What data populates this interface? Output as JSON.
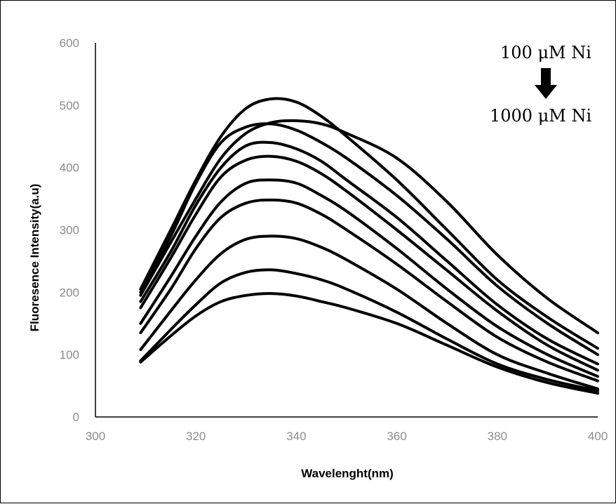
{
  "chart_data": {
    "type": "line",
    "xlabel": "Wavelenght(nm)",
    "ylabel": "Fluoresence Intensity(a.u)",
    "xlim": [
      300,
      400
    ],
    "ylim": [
      0,
      600
    ],
    "x_ticks": [
      "300",
      "320",
      "340",
      "360",
      "380",
      "400"
    ],
    "y_ticks": [
      "0",
      "100",
      "200",
      "300",
      "400",
      "500",
      "600"
    ],
    "grid": false,
    "legend": "none",
    "line_color": "#000000",
    "annotation": {
      "top_label": "100 μM Ni",
      "bottom_label": "1000 μM Ni",
      "arrow": "down"
    },
    "x": [
      309,
      315,
      320,
      325,
      330,
      335,
      340,
      345,
      350,
      360,
      370,
      380,
      390,
      400
    ],
    "series": [
      {
        "values": [
          205,
          300,
          380,
          450,
          495,
          510,
          505,
          482,
          450,
          380,
          300,
          220,
          160,
          110
        ]
      },
      {
        "values": [
          200,
          290,
          375,
          440,
          465,
          470,
          460,
          440,
          415,
          355,
          285,
          210,
          150,
          100
        ]
      },
      {
        "values": [
          195,
          280,
          350,
          415,
          455,
          472,
          475,
          470,
          455,
          415,
          345,
          260,
          190,
          135
        ]
      },
      {
        "values": [
          185,
          265,
          340,
          400,
          435,
          440,
          430,
          410,
          380,
          320,
          250,
          180,
          125,
          85
        ]
      },
      {
        "values": [
          175,
          255,
          325,
          385,
          412,
          418,
          410,
          390,
          362,
          300,
          235,
          170,
          115,
          75
        ]
      },
      {
        "values": [
          150,
          225,
          290,
          345,
          375,
          380,
          375,
          355,
          330,
          270,
          205,
          145,
          100,
          65
        ]
      },
      {
        "values": [
          135,
          205,
          270,
          320,
          343,
          348,
          343,
          325,
          300,
          245,
          185,
          128,
          88,
          58
        ]
      },
      {
        "values": [
          108,
          170,
          220,
          262,
          285,
          290,
          286,
          272,
          252,
          205,
          150,
          100,
          70,
          45
        ]
      },
      {
        "values": [
          90,
          140,
          180,
          215,
          232,
          236,
          230,
          220,
          205,
          168,
          125,
          85,
          60,
          42
        ]
      },
      {
        "values": [
          88,
          130,
          162,
          185,
          195,
          198,
          194,
          185,
          175,
          150,
          115,
          80,
          55,
          38
        ]
      }
    ]
  }
}
